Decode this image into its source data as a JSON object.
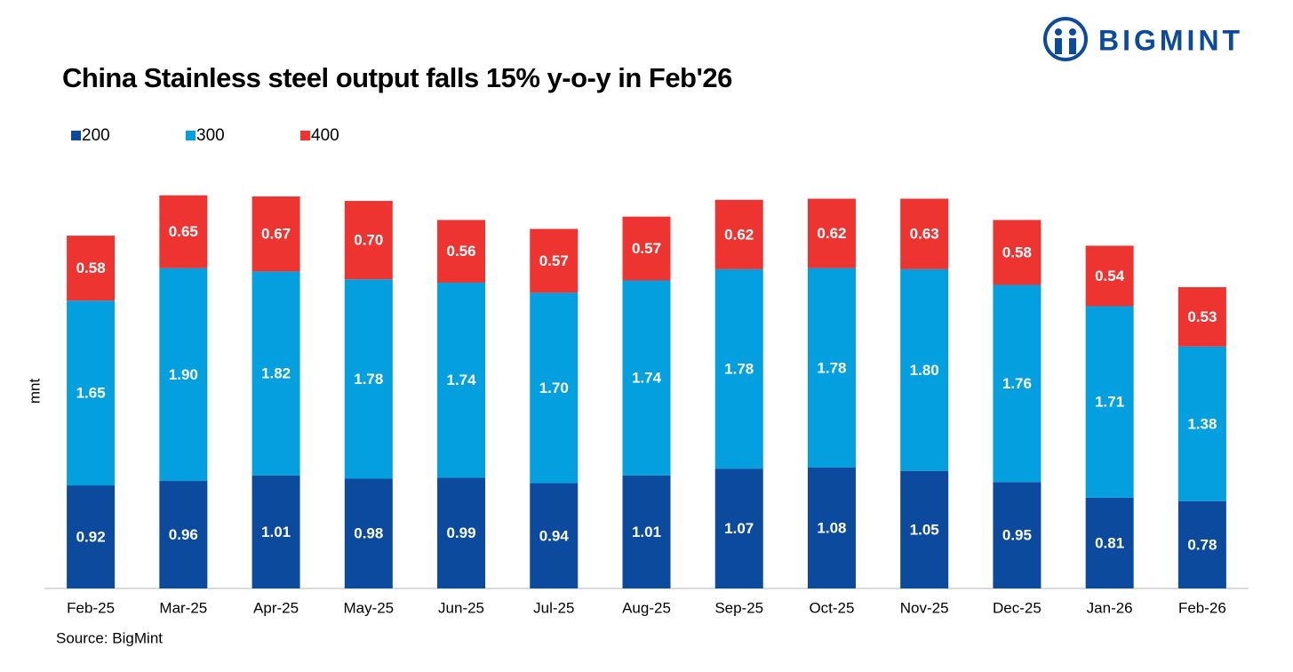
{
  "chart_data": {
    "type": "stacked_bar",
    "title": "China Stainless steel output falls 15% y-o-y in Feb'26",
    "logo": "BIGMINT",
    "source": "Source: BigMint",
    "y_label": "mnt",
    "categories": [
      "Feb-25",
      "Mar-25",
      "Apr-25",
      "May-25",
      "Jun-25",
      "Jul-25",
      "Aug-25",
      "Sep-25",
      "Oct-25",
      "Nov-25",
      "Dec-25",
      "Jan-26",
      "Feb-26"
    ],
    "series": [
      {
        "name": "200",
        "color": "#0b4a9c",
        "values": [
          0.92,
          0.96,
          1.01,
          0.98,
          0.99,
          0.94,
          1.01,
          1.07,
          1.08,
          1.05,
          0.95,
          0.81,
          0.78
        ]
      },
      {
        "name": "300",
        "color": "#039fdf",
        "values": [
          1.65,
          1.9,
          1.82,
          1.78,
          1.74,
          1.7,
          1.74,
          1.78,
          1.78,
          1.8,
          1.76,
          1.71,
          1.38
        ],
        "value_labels": [
          "1.65",
          "1.90",
          "1.82",
          "1.78",
          "1.74",
          "1.70",
          "1.74",
          "1.78",
          "1.78",
          "1.80",
          "1.76",
          "1.71",
          "1.38"
        ]
      },
      {
        "name": "400",
        "color": "#ee3431",
        "values": [
          0.58,
          0.65,
          0.67,
          0.7,
          0.56,
          0.57,
          0.57,
          0.62,
          0.62,
          0.63,
          0.58,
          0.54,
          0.53
        ],
        "value_labels": [
          "0.58",
          "0.65",
          "0.67",
          "0.70",
          "0.56",
          "0.57",
          "0.57",
          "0.62",
          "0.62",
          "0.63",
          "0.58",
          "0.54",
          "0.53"
        ]
      }
    ],
    "ylim": [
      0,
      4
    ],
    "legend": "top-left"
  }
}
